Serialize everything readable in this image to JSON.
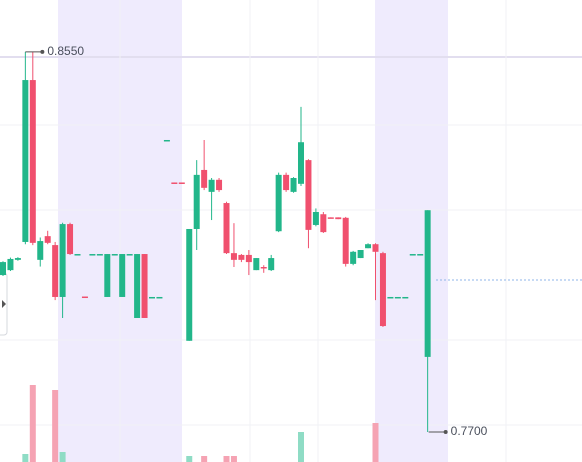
{
  "chart_data": {
    "type": "candlestick",
    "ylim": [
      0.7633,
      0.8666
    ],
    "volume_ylim": [
      0,
      462
    ],
    "up_color": "#22b68a",
    "down_color": "#f0506e",
    "up_volume_color": "#8fdcc5",
    "down_volume_color": "#f5a3b3",
    "price_line": 0.804,
    "annotations": [
      {
        "value": 0.855,
        "label": "0.8550"
      },
      {
        "value": 0.77,
        "label": "0.7700"
      }
    ],
    "open": [
      0.8051,
      0.8062,
      0.8085,
      0.8125,
      0.8487,
      0.8085,
      0.8138,
      0.8118,
      0.8002,
      0.8165,
      0.8098,
      0.8003,
      0.8098,
      0.8098,
      0.8002,
      0.8098,
      0.8002,
      0.8098,
      0.7955,
      0.8098,
      0.8002,
      0.8002,
      0.8353,
      0.8258,
      0.8258,
      0.7904,
      0.8154,
      0.8286,
      0.8237,
      0.8264,
      0.8212,
      0.81,
      0.8096,
      0.8096,
      0.8062,
      0.8069,
      0.8062,
      0.8149,
      0.8275,
      0.8237,
      0.8255,
      0.8308,
      0.8163,
      0.8187,
      0.818,
      0.818,
      0.8179,
      0.8076,
      0.8089,
      0.8111,
      0.812,
      0.81,
      0.8002,
      0.8002,
      0.8002,
      0.8098,
      0.8098,
      0.7868
    ],
    "high": [
      0.8082,
      0.809,
      0.8091,
      0.855,
      0.855,
      0.8135,
      0.815,
      0.8125,
      0.8168,
      0.8168,
      0.8098,
      0.8003,
      0.8098,
      0.8098,
      0.8098,
      0.8098,
      0.8098,
      0.8098,
      0.8098,
      0.8098,
      0.8002,
      0.8002,
      0.8353,
      0.8258,
      0.8258,
      0.8154,
      0.8308,
      0.8353,
      0.8268,
      0.8268,
      0.8215,
      0.8167,
      0.8098,
      0.8107,
      0.8089,
      0.8073,
      0.8096,
      0.828,
      0.828,
      0.827,
      0.8427,
      0.831,
      0.82,
      0.8192,
      0.818,
      0.818,
      0.8181,
      0.8105,
      0.8107,
      0.8122,
      0.8122,
      0.8103,
      0.8002,
      0.8002,
      0.8002,
      0.8098,
      0.8098,
      0.8196
    ],
    "low": [
      0.8049,
      0.806,
      0.8083,
      0.812,
      0.8118,
      0.807,
      0.812,
      0.7995,
      0.7955,
      0.8096,
      0.8098,
      0.8002,
      0.8098,
      0.8098,
      0.8002,
      0.8098,
      0.8002,
      0.8098,
      0.7955,
      0.7955,
      0.8002,
      0.8002,
      0.8353,
      0.8257,
      0.8257,
      0.7904,
      0.8107,
      0.8241,
      0.8174,
      0.8237,
      0.8098,
      0.8069,
      0.808,
      0.8051,
      0.8062,
      0.8056,
      0.806,
      0.8147,
      0.8237,
      0.8235,
      0.825,
      0.8111,
      0.816,
      0.8145,
      0.8178,
      0.8176,
      0.807,
      0.8073,
      0.8089,
      0.8111,
      0.7995,
      0.7935,
      0.8002,
      0.8002,
      0.8002,
      0.8098,
      0.8098,
      0.77
    ],
    "close": [
      0.808,
      0.8087,
      0.8089,
      0.8487,
      0.8123,
      0.8127,
      0.8123,
      0.8002,
      0.8165,
      0.8098,
      0.8098,
      0.8002,
      0.8098,
      0.8098,
      0.8098,
      0.8098,
      0.8098,
      0.8098,
      0.8098,
      0.7955,
      0.8002,
      0.8002,
      0.8353,
      0.8257,
      0.8257,
      0.8154,
      0.8275,
      0.8246,
      0.8264,
      0.8241,
      0.81,
      0.8085,
      0.8085,
      0.808,
      0.8089,
      0.8067,
      0.8089,
      0.8275,
      0.8241,
      0.8268,
      0.8348,
      0.8152,
      0.8192,
      0.8147,
      0.8178,
      0.8176,
      0.8076,
      0.8103,
      0.8107,
      0.812,
      0.8103,
      0.7937,
      0.8002,
      0.8002,
      0.8002,
      0.8098,
      0.8098,
      0.8196
    ],
    "volume": [
      0,
      0,
      0,
      8,
      77,
      0,
      0,
      72,
      10,
      0,
      0,
      0,
      0,
      0,
      0,
      0,
      0,
      0,
      0,
      0,
      0,
      0,
      0,
      0,
      0,
      6,
      0,
      6,
      0,
      0,
      6,
      6,
      0,
      0,
      0,
      0,
      0,
      0,
      0,
      0,
      30,
      0,
      0,
      0,
      0,
      0,
      0,
      0,
      0,
      0,
      39,
      0,
      0,
      0,
      0,
      0,
      0,
      0
    ]
  }
}
